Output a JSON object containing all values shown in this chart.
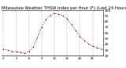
{
  "title": "Milwaukee Weather THSW Index per Hour (F) (Last 24 Hours)",
  "title_fontsize": 3.8,
  "bg_color": "#ffffff",
  "line_color": "#dd0000",
  "marker_color": "#000000",
  "grid_color": "#999999",
  "hours": [
    0,
    1,
    2,
    3,
    4,
    5,
    6,
    7,
    8,
    9,
    10,
    11,
    12,
    13,
    14,
    15,
    16,
    17,
    18,
    19,
    20,
    21,
    22,
    23
  ],
  "values": [
    32,
    30,
    28,
    27,
    26,
    25,
    27,
    36,
    52,
    70,
    84,
    91,
    95,
    93,
    90,
    85,
    75,
    64,
    54,
    47,
    41,
    37,
    34,
    32
  ],
  "ylim_min": 20,
  "ylim_max": 100,
  "yticks": [
    20,
    30,
    40,
    50,
    60,
    70,
    80,
    90,
    100
  ],
  "ytick_labels": [
    "20",
    "30",
    "40",
    "50",
    "60",
    "70",
    "80",
    "90",
    "100"
  ],
  "ylabel_fontsize": 3.2,
  "axis_color": "#000000",
  "vgrid_positions": [
    0,
    3,
    6,
    9,
    12,
    15,
    18,
    21
  ],
  "tick_fontsize": 2.8,
  "right_axis": true,
  "linewidth": 0.7,
  "markersize": 1.4
}
